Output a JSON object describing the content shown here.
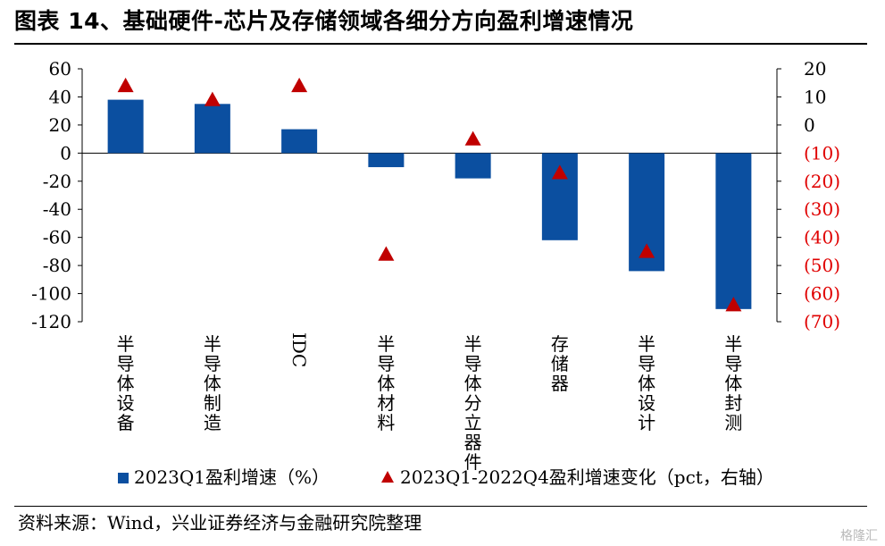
{
  "title": "图表 14、基础硬件-芯片及存储领域各细分方向盈利增速情况",
  "source": "资料来源：Wind，兴业证券经济与金融研究院整理",
  "watermark": "格隆汇",
  "colors": {
    "bar": "#0b4fa0",
    "marker": "#c00000",
    "right_tick": "#e00000"
  },
  "chart_data": {
    "type": "bar",
    "categories": [
      "半导体设备",
      "半导体制造",
      "IDC",
      "半导体材料",
      "半导体分立器件",
      "存储器",
      "半导体设计",
      "半导体封测"
    ],
    "category_orientation": "vertical",
    "series": [
      {
        "name": "2023Q1盈利增速（%）",
        "kind": "bar",
        "axis": "left",
        "values": [
          38,
          35,
          17,
          -10,
          -18,
          -62,
          -84,
          -111
        ]
      },
      {
        "name": "2023Q1-2022Q4盈利增速变化（pct，右轴）",
        "kind": "triangle-marker",
        "axis": "right",
        "values": [
          14,
          9,
          14,
          -46,
          -5,
          -17,
          -45,
          -64
        ]
      }
    ],
    "left_axis": {
      "ylim": [
        -120,
        60
      ],
      "ticks": [
        60,
        40,
        20,
        0,
        -20,
        -40,
        -60,
        -80,
        -100,
        -120
      ],
      "tick_labels": [
        "60",
        "40",
        "20",
        "0",
        "-20",
        "-40",
        "-60",
        "-80",
        "-100",
        "-120"
      ]
    },
    "right_axis": {
      "ylim": [
        -70,
        20
      ],
      "ticks": [
        20,
        10,
        0,
        -10,
        -20,
        -30,
        -40,
        -50,
        -60,
        -70
      ],
      "tick_labels": [
        "20",
        "10",
        "0",
        "(10)",
        "(20)",
        "(30)",
        "(40)",
        "(50)",
        "(60)",
        "(70)"
      ]
    },
    "grid": false,
    "legend": {
      "placement": "bottom",
      "items": [
        "2023Q1盈利增速（%）",
        "2023Q1-2022Q4盈利增速变化（pct，右轴）"
      ]
    }
  }
}
